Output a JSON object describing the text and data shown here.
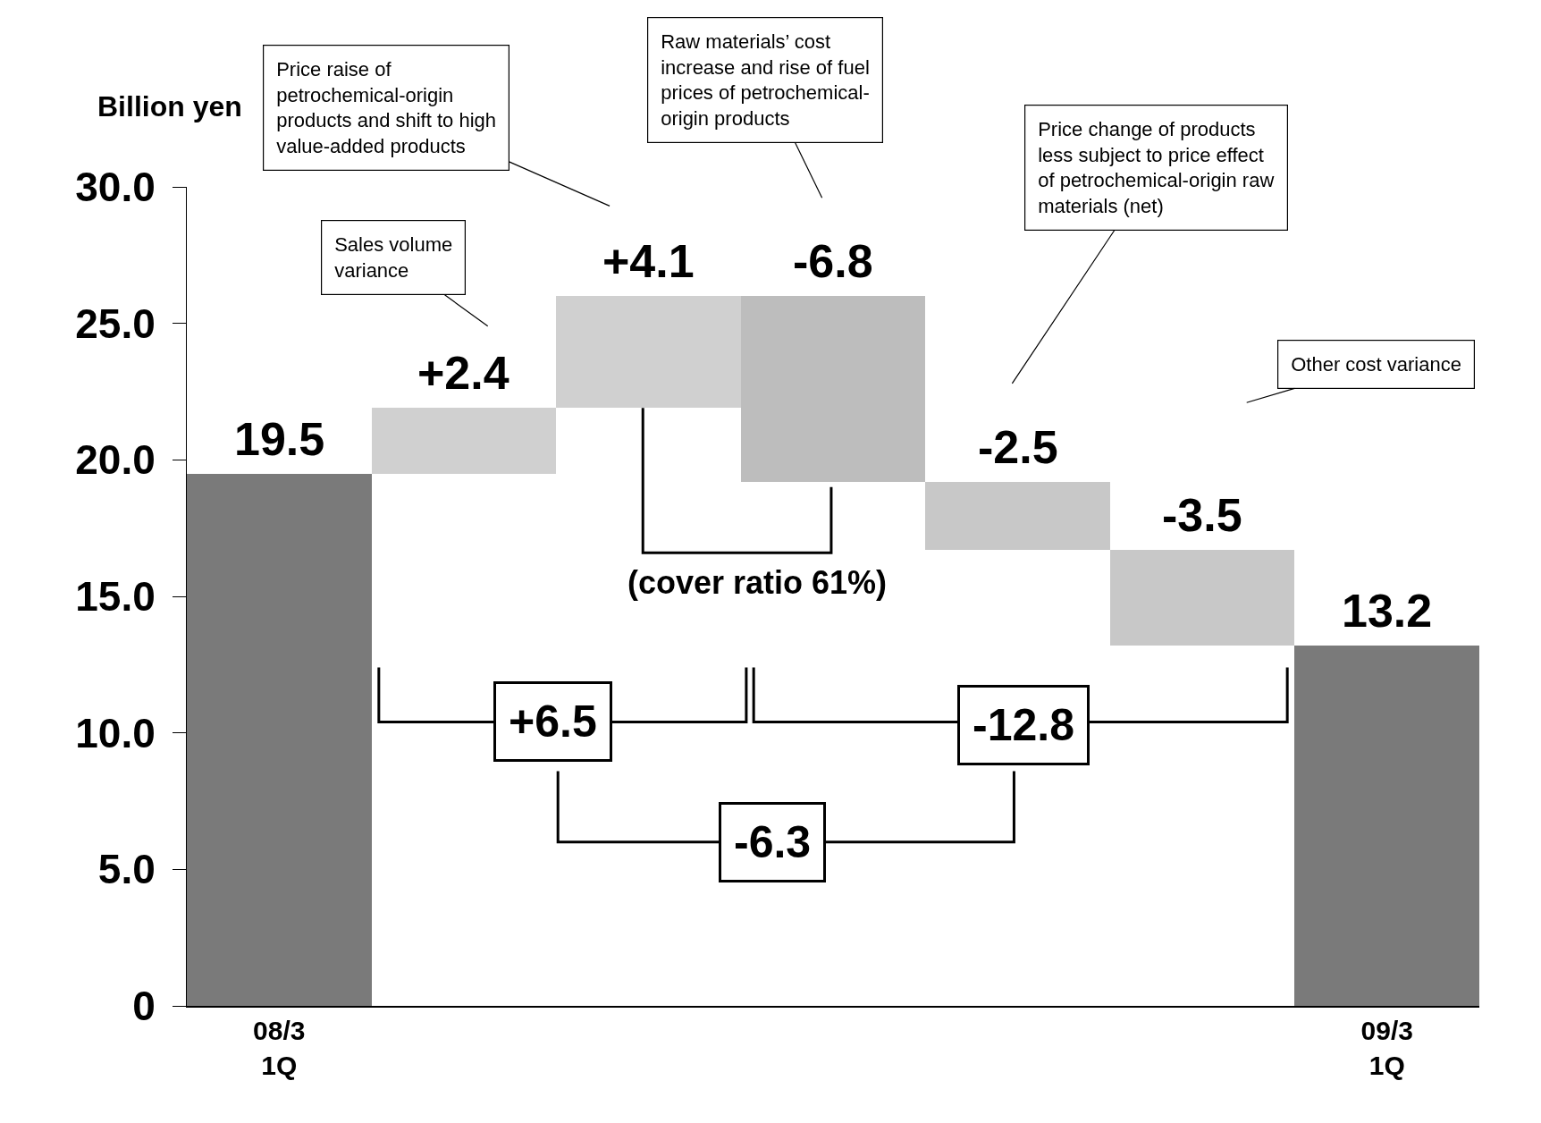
{
  "chart_data": {
    "type": "bar",
    "ylabel": "Billion yen",
    "categories": [
      "08/3\n1Q",
      null,
      null,
      null,
      null,
      null,
      "09/3\n1Q"
    ],
    "values": [
      19.5,
      2.4,
      4.1,
      -6.8,
      -2.5,
      -3.5,
      13.2
    ],
    "base": [
      0,
      19.5,
      21.9,
      26.0,
      19.2,
      16.7,
      0
    ],
    "value_labels": [
      "19.5",
      "+2.4",
      "+4.1",
      "-6.8",
      "-2.5",
      "-3.5",
      "13.2"
    ],
    "colors": [
      "#7a7a7a",
      "#d0d0d0",
      "#d0d0d0",
      "#bdbdbd",
      "#c8c8c8",
      "#c8c8c8",
      "#7a7a7a"
    ],
    "ylim": [
      0,
      30
    ],
    "yticks": [
      0,
      {
        "value": 5,
        "label": "5.0"
      },
      {
        "value": 10,
        "label": "10.0"
      },
      {
        "value": 15,
        "label": "15.0"
      },
      {
        "value": 20,
        "label": "20.0"
      },
      {
        "value": 25,
        "label": "25.0"
      },
      {
        "value": 30,
        "label": "30.0"
      }
    ],
    "grid": false,
    "legend": false,
    "annotations": [
      "Price raise of\npetrochemical-origin\nproducts and shift to high\nvalue-added products",
      "Sales volume\nvariance",
      "Raw materials’ cost\nincrease and rise of fuel\nprices of petrochemical-\norigin products",
      "Price change of products\nless subject to price effect\nof petrochemical-origin raw\nmaterials (net)",
      "Other cost variance",
      "(cover ratio 61%)",
      "+6.5",
      "-12.8",
      "-6.3"
    ]
  }
}
